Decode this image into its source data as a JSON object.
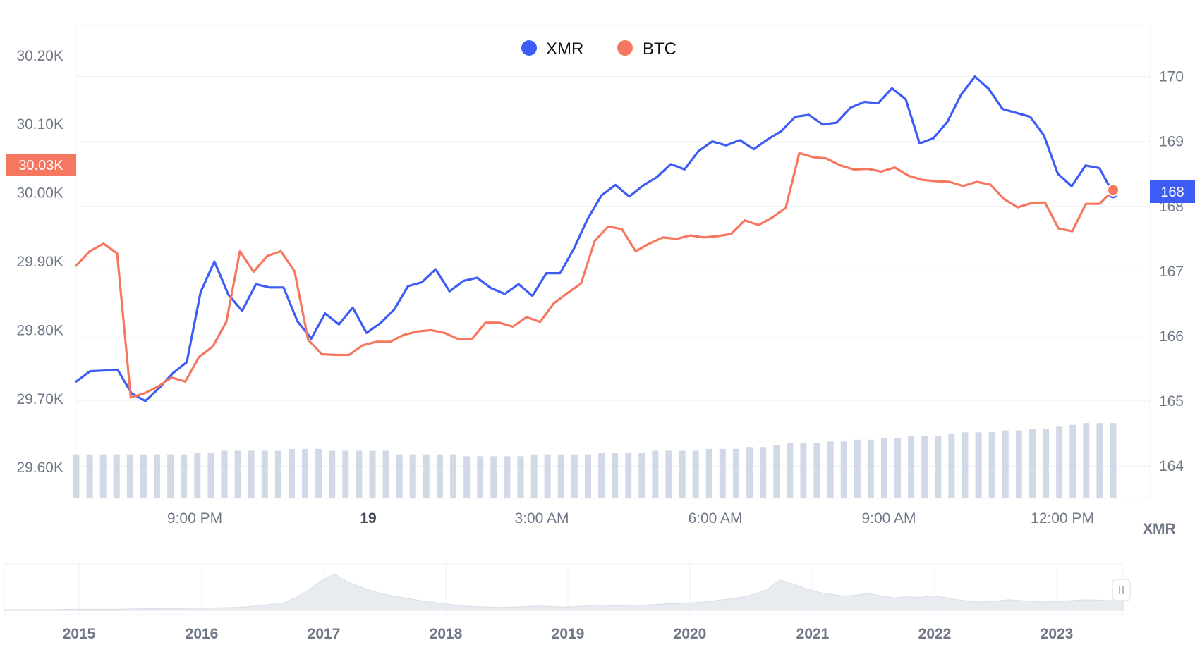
{
  "colors": {
    "xmr": "#3d5cf5",
    "btc": "#f6775f",
    "volume": "#d2d9e6",
    "grid": "#eef0f4",
    "navigator_fill": "#e8ecf1"
  },
  "legend": [
    {
      "name": "XMR",
      "color": "#3d5cf5",
      "icon": "dot-icon"
    },
    {
      "name": "BTC",
      "color": "#f6775f",
      "icon": "dot-icon"
    }
  ],
  "badges": {
    "left": "30.03K",
    "right": "168"
  },
  "unit_label": "XMR",
  "chart_data": {
    "type": "line",
    "left_axis": {
      "ticks": [
        "30.20K",
        "30.10K",
        "30.00K",
        "29.90K",
        "29.80K",
        "29.70K",
        "29.60K"
      ],
      "tick_values": [
        30200,
        30100,
        30000,
        29900,
        29800,
        29700,
        29600
      ],
      "range": [
        29555,
        30245
      ]
    },
    "right_axis": {
      "ticks": [
        "170",
        "169",
        "168",
        "167",
        "166",
        "165",
        "164"
      ],
      "tick_values": [
        170,
        169,
        168,
        167,
        166,
        165,
        164
      ],
      "range": [
        163.5,
        170.8
      ]
    },
    "x_axis": {
      "ticks": [
        {
          "label": "9:00 PM",
          "bold": false
        },
        {
          "label": "19",
          "bold": true
        },
        {
          "label": "3:00 AM",
          "bold": false
        },
        {
          "label": "6:00 AM",
          "bold": false
        },
        {
          "label": "9:00 AM",
          "bold": false
        },
        {
          "label": "12:00 PM",
          "bold": false
        }
      ]
    },
    "series": [
      {
        "name": "XMR",
        "color": "#3d5cf5",
        "axis": "right",
        "values": [
          165.3,
          165.46,
          165.47,
          165.48,
          165.12,
          165.0,
          165.2,
          165.43,
          165.6,
          166.68,
          167.15,
          166.64,
          166.39,
          166.8,
          166.75,
          166.75,
          166.23,
          165.96,
          166.35,
          166.18,
          166.44,
          166.05,
          166.2,
          166.41,
          166.77,
          166.83,
          167.03,
          166.69,
          166.85,
          166.9,
          166.74,
          166.65,
          166.8,
          166.62,
          166.97,
          166.97,
          167.35,
          167.81,
          168.17,
          168.33,
          168.15,
          168.32,
          168.45,
          168.65,
          168.57,
          168.85,
          169.0,
          168.94,
          169.02,
          168.88,
          169.03,
          169.16,
          169.38,
          169.41,
          169.26,
          169.29,
          169.52,
          169.61,
          169.59,
          169.82,
          169.65,
          168.97,
          169.05,
          169.3,
          169.72,
          170.0,
          169.81,
          169.5,
          169.44,
          169.38,
          169.09,
          168.5,
          168.31,
          168.63,
          168.59,
          168.2
        ],
        "last_marker": true
      },
      {
        "name": "BTC",
        "color": "#f6775f",
        "axis": "left",
        "values": [
          29894,
          29915,
          29926,
          29912,
          29702,
          29708,
          29718,
          29731,
          29725,
          29761,
          29776,
          29812,
          29915,
          29885,
          29908,
          29915,
          29886,
          29786,
          29765,
          29764,
          29764,
          29778,
          29783,
          29783,
          29793,
          29798,
          29800,
          29796,
          29787,
          29787,
          29811,
          29811,
          29805,
          29819,
          29812,
          29839,
          29854,
          29868,
          29930,
          29951,
          29947,
          29915,
          29926,
          29935,
          29933,
          29938,
          29935,
          29937,
          29940,
          29960,
          29953,
          29964,
          29978,
          30058,
          30052,
          30050,
          30040,
          30034,
          30035,
          30031,
          30037,
          30025,
          30019,
          30017,
          30016,
          30010,
          30016,
          30012,
          29991,
          29979,
          29985,
          29986,
          29948,
          29944,
          29984,
          29984,
          30004
        ],
        "last_marker": true
      }
    ],
    "volume": {
      "values": [
        23,
        23,
        23,
        23,
        23,
        23,
        23,
        23,
        23,
        24,
        24,
        25,
        25,
        25,
        25,
        25,
        26,
        26,
        26,
        25,
        25,
        25,
        25,
        25,
        23,
        23,
        23,
        23,
        23,
        22,
        22,
        22,
        22,
        22,
        23,
        23,
        23,
        23,
        23,
        24,
        24,
        24,
        24,
        25,
        25,
        25,
        25,
        26,
        26,
        26,
        27,
        27,
        28,
        29,
        29,
        29,
        30,
        30,
        31,
        31,
        32,
        32,
        33,
        33,
        33,
        34,
        35,
        35,
        35,
        36,
        36,
        37,
        37,
        38,
        39,
        40,
        40,
        40
      ]
    },
    "navigator": {
      "labels": [
        "2015",
        "2016",
        "2017",
        "2018",
        "2019",
        "2020",
        "2021",
        "2022",
        "2023"
      ],
      "values": [
        0.02,
        0.02,
        0.02,
        0.02,
        0.02,
        0.03,
        0.03,
        0.03,
        0.03,
        0.03,
        0.04,
        0.04,
        0.05,
        0.05,
        0.05,
        0.06,
        0.06,
        0.07,
        0.08,
        0.09,
        0.12,
        0.16,
        0.2,
        0.35,
        0.55,
        0.8,
        0.95,
        0.75,
        0.62,
        0.5,
        0.42,
        0.36,
        0.3,
        0.24,
        0.2,
        0.16,
        0.12,
        0.1,
        0.09,
        0.08,
        0.09,
        0.1,
        0.12,
        0.1,
        0.09,
        0.1,
        0.12,
        0.14,
        0.12,
        0.13,
        0.14,
        0.15,
        0.17,
        0.18,
        0.2,
        0.22,
        0.26,
        0.3,
        0.35,
        0.42,
        0.55,
        0.8,
        0.7,
        0.58,
        0.48,
        0.42,
        0.38,
        0.4,
        0.44,
        0.38,
        0.33,
        0.36,
        0.34,
        0.38,
        0.34,
        0.28,
        0.24,
        0.22,
        0.25,
        0.28,
        0.26,
        0.24,
        0.22,
        0.24,
        0.26,
        0.28,
        0.27,
        0.26,
        0.27
      ]
    }
  }
}
